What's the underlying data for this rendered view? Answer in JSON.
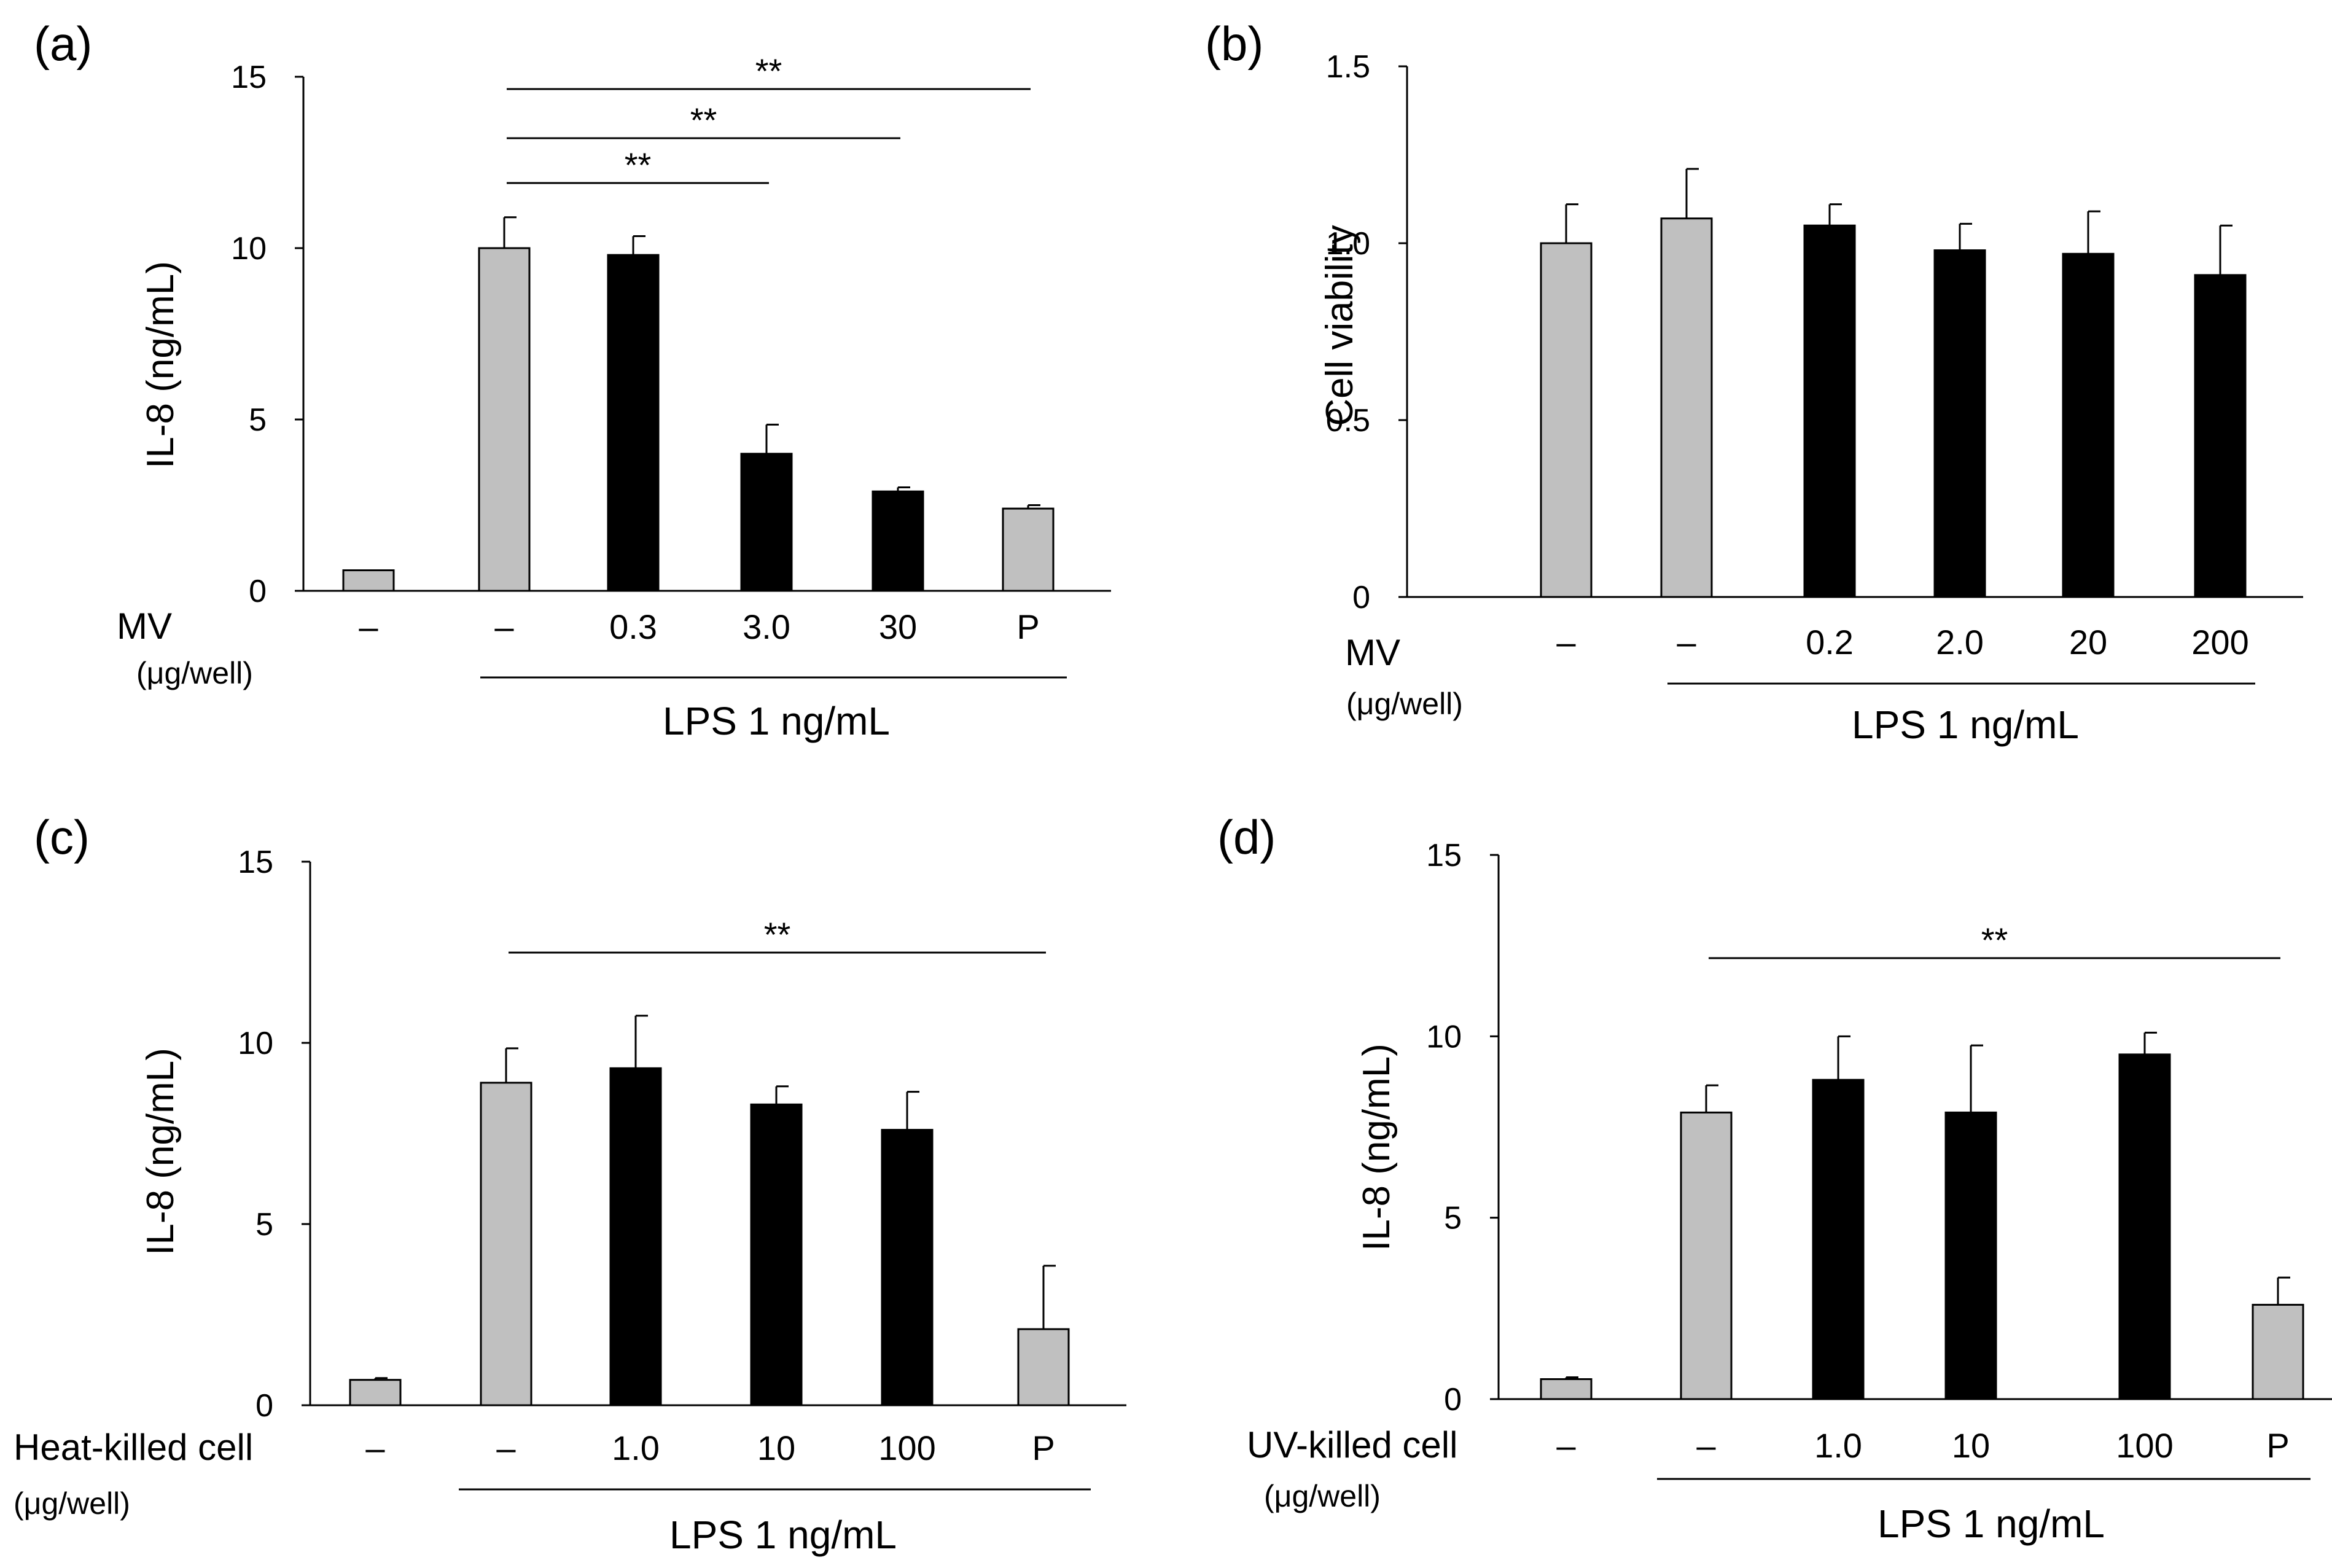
{
  "figure": {
    "colors": {
      "control": "#c0c0c0",
      "treated": "#000000",
      "axis": "#000000"
    }
  },
  "chart_data": [
    {
      "id": "a",
      "panel_label": "(a)",
      "type": "bar",
      "ylabel": "IL-8 (ng/mL)",
      "ylim": [
        0,
        15
      ],
      "yticks": [
        0,
        5,
        10,
        15
      ],
      "ytick_labels": [
        "0",
        "5",
        "10",
        "15"
      ],
      "treatment_label": "MV",
      "unit_label": "(μg/well)",
      "categories": [
        "–",
        "–",
        "0.3",
        "3.0",
        "30",
        "P"
      ],
      "values": [
        0.6,
        10.0,
        9.8,
        4.0,
        2.9,
        2.4
      ],
      "errors": [
        0.0,
        0.9,
        0.55,
        0.85,
        0.12,
        0.1
      ],
      "bar_types": [
        "control",
        "control",
        "treated",
        "treated",
        "treated",
        "control"
      ],
      "group_label": "LPS 1 ng/mL",
      "group_span": [
        1,
        5
      ],
      "significance": [
        {
          "from": 1,
          "to": 5,
          "label": "**"
        },
        {
          "from": 1,
          "to": 4,
          "label": "**"
        },
        {
          "from": 1,
          "to": 3,
          "label": "**"
        }
      ]
    },
    {
      "id": "b",
      "panel_label": "(b)",
      "type": "bar",
      "ylabel": "Cell viability",
      "ylim": [
        0,
        1.5
      ],
      "yticks": [
        0,
        0.5,
        1.0,
        1.5
      ],
      "ytick_labels": [
        "0",
        "0.5",
        "1.0",
        "1.5"
      ],
      "treatment_label": "MV",
      "unit_label": "(μg/well)",
      "categories": [
        "–",
        "–",
        "0.2",
        "2.0",
        "20",
        "200"
      ],
      "values": [
        1.0,
        1.07,
        1.05,
        0.98,
        0.97,
        0.91
      ],
      "errors": [
        0.11,
        0.14,
        0.06,
        0.075,
        0.12,
        0.14
      ],
      "bar_types": [
        "control",
        "control",
        "treated",
        "treated",
        "treated",
        "treated"
      ],
      "group_label": "LPS 1 ng/mL",
      "group_span": [
        1,
        5
      ],
      "significance": []
    },
    {
      "id": "c",
      "panel_label": "(c)",
      "type": "bar",
      "ylabel": "IL-8 (ng/mL)",
      "ylim": [
        0,
        15
      ],
      "yticks": [
        0,
        5,
        10,
        15
      ],
      "ytick_labels": [
        "0",
        "5",
        "10",
        "15"
      ],
      "treatment_label": "Heat-killed cell",
      "unit_label": "(μg/well)",
      "categories": [
        "–",
        "–",
        "1.0",
        "10",
        "100",
        "P"
      ],
      "values": [
        0.7,
        8.9,
        9.3,
        8.3,
        7.6,
        2.1
      ],
      "errors": [
        0.05,
        0.95,
        1.45,
        0.5,
        1.05,
        1.75
      ],
      "bar_types": [
        "control",
        "control",
        "treated",
        "treated",
        "treated",
        "control"
      ],
      "group_label": "LPS 1 ng/mL",
      "group_span": [
        1,
        5
      ],
      "significance": [
        {
          "from": 1,
          "to": 5,
          "label": "**"
        }
      ]
    },
    {
      "id": "d",
      "panel_label": "(d)",
      "type": "bar",
      "ylabel": "IL-8 (ng/mL)",
      "ylim": [
        0,
        15
      ],
      "yticks": [
        0,
        5,
        10,
        15
      ],
      "ytick_labels": [
        "0",
        "5",
        "10",
        "15"
      ],
      "treatment_label": "UV-killed cell",
      "unit_label": "(μg/well)",
      "categories": [
        "–",
        "–",
        "1.0",
        "10",
        "100",
        "P"
      ],
      "values": [
        0.55,
        7.9,
        8.8,
        7.9,
        9.5,
        2.6
      ],
      "errors": [
        0.05,
        0.75,
        1.2,
        1.85,
        0.6,
        0.75
      ],
      "bar_types": [
        "control",
        "control",
        "treated",
        "treated",
        "treated",
        "control"
      ],
      "group_label": "LPS 1 ng/mL",
      "group_span": [
        1,
        5
      ],
      "significance": [
        {
          "from": 1,
          "to": 5,
          "label": "**"
        }
      ]
    }
  ]
}
